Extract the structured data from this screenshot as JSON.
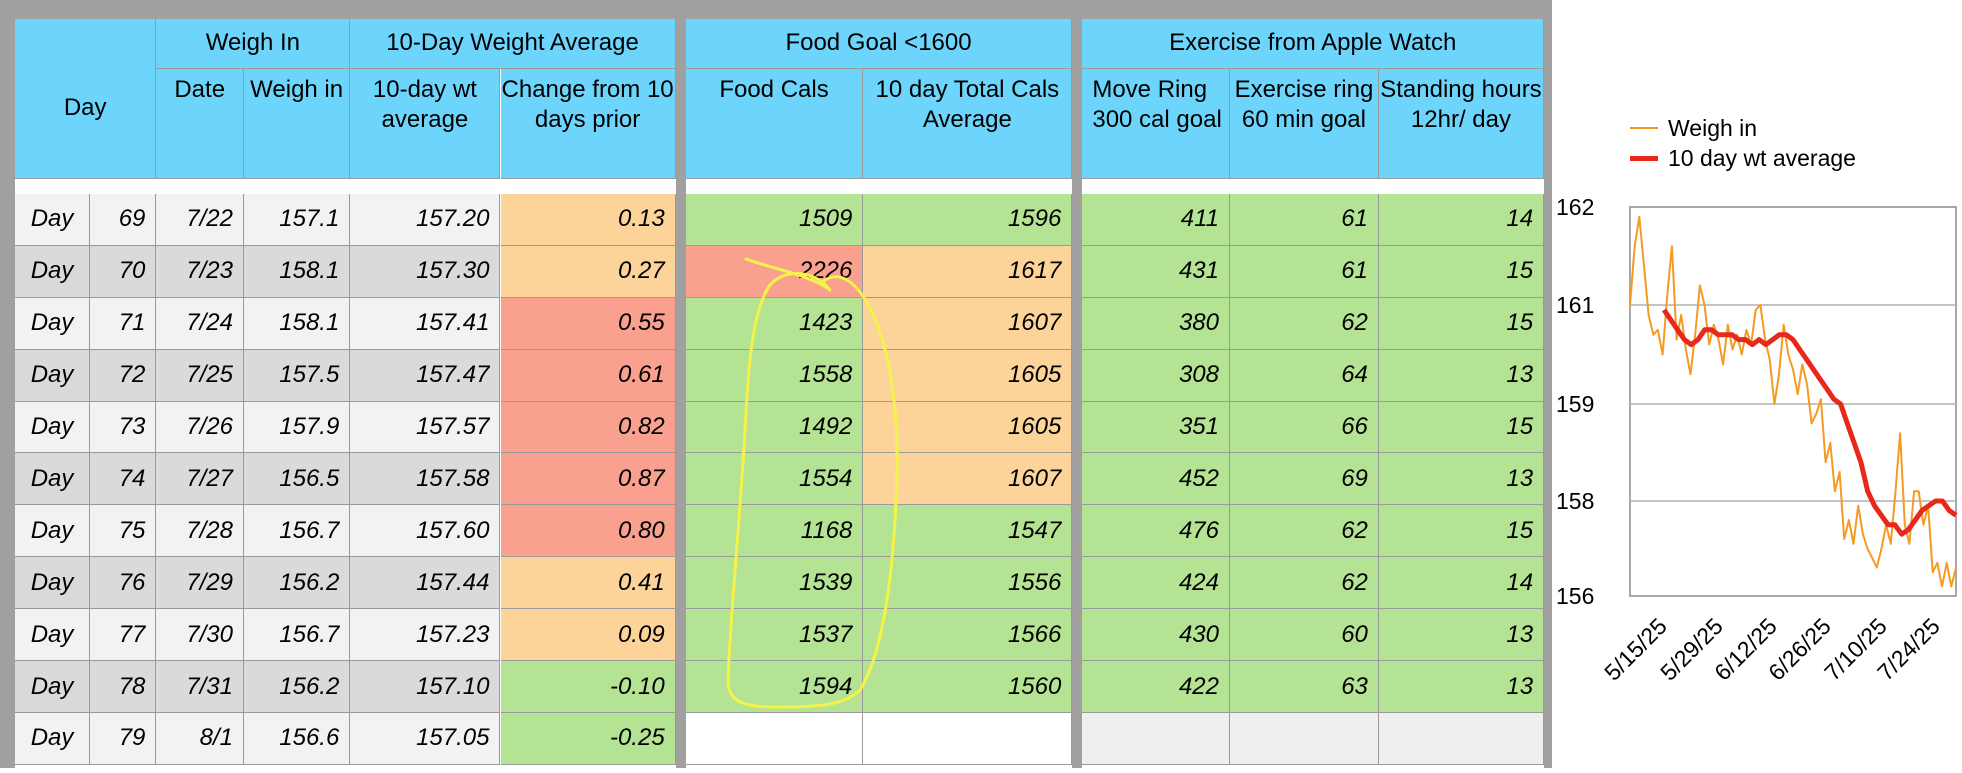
{
  "colors": {
    "header": "#6dd5fc",
    "green": "#b4e394",
    "orange": "#fcd49a",
    "red": "#f9a08e",
    "weigh_line": "#f59a23",
    "avg_line": "#e8281a",
    "annotation": "#f5f24a"
  },
  "headers": {
    "day": "Day",
    "weigh_in_group": "Weigh In",
    "avg_group": "10-Day Weight Average",
    "food_group": "Food Goal <1600",
    "exercise_group": "Exercise from Apple Watch",
    "date": "Date",
    "weigh": "Weigh in",
    "avg": "10-day wt average",
    "change": "Change from 10 days prior",
    "food": "Food Cals",
    "total": "10 day Total Cals Average",
    "move": "Move Ring 300 cal goal",
    "exercise": "Exercise ring 60 min goal",
    "stand": "Standing hours 12hr/ day"
  },
  "rows": [
    {
      "label": "Day",
      "day": "69",
      "date": "7/22",
      "weigh": "157.1",
      "avg": "157.20",
      "change": "0.13",
      "change_color": "orange",
      "food": "1509",
      "food_color": "green",
      "total": "1596",
      "total_color": "green",
      "move": "411",
      "exercise": "61",
      "stand": "14"
    },
    {
      "label": "Day",
      "day": "70",
      "date": "7/23",
      "weigh": "158.1",
      "avg": "157.30",
      "change": "0.27",
      "change_color": "orange",
      "food": "2226",
      "food_color": "red",
      "total": "1617",
      "total_color": "orange",
      "move": "431",
      "exercise": "61",
      "stand": "15"
    },
    {
      "label": "Day",
      "day": "71",
      "date": "7/24",
      "weigh": "158.1",
      "avg": "157.41",
      "change": "0.55",
      "change_color": "red",
      "food": "1423",
      "food_color": "green",
      "total": "1607",
      "total_color": "orange",
      "move": "380",
      "exercise": "62",
      "stand": "15"
    },
    {
      "label": "Day",
      "day": "72",
      "date": "7/25",
      "weigh": "157.5",
      "avg": "157.47",
      "change": "0.61",
      "change_color": "red",
      "food": "1558",
      "food_color": "green",
      "total": "1605",
      "total_color": "orange",
      "move": "308",
      "exercise": "64",
      "stand": "13"
    },
    {
      "label": "Day",
      "day": "73",
      "date": "7/26",
      "weigh": "157.9",
      "avg": "157.57",
      "change": "0.82",
      "change_color": "red",
      "food": "1492",
      "food_color": "green",
      "total": "1605",
      "total_color": "orange",
      "move": "351",
      "exercise": "66",
      "stand": "15"
    },
    {
      "label": "Day",
      "day": "74",
      "date": "7/27",
      "weigh": "156.5",
      "avg": "157.58",
      "change": "0.87",
      "change_color": "red",
      "food": "1554",
      "food_color": "green",
      "total": "1607",
      "total_color": "orange",
      "move": "452",
      "exercise": "69",
      "stand": "13"
    },
    {
      "label": "Day",
      "day": "75",
      "date": "7/28",
      "weigh": "156.7",
      "avg": "157.60",
      "change": "0.80",
      "change_color": "red",
      "food": "1168",
      "food_color": "green",
      "total": "1547",
      "total_color": "green",
      "move": "476",
      "exercise": "62",
      "stand": "15"
    },
    {
      "label": "Day",
      "day": "76",
      "date": "7/29",
      "weigh": "156.2",
      "avg": "157.44",
      "change": "0.41",
      "change_color": "orange",
      "food": "1539",
      "food_color": "green",
      "total": "1556",
      "total_color": "green",
      "move": "424",
      "exercise": "62",
      "stand": "14"
    },
    {
      "label": "Day",
      "day": "77",
      "date": "7/30",
      "weigh": "156.7",
      "avg": "157.23",
      "change": "0.09",
      "change_color": "orange",
      "food": "1537",
      "food_color": "green",
      "total": "1566",
      "total_color": "green",
      "move": "430",
      "exercise": "60",
      "stand": "13"
    },
    {
      "label": "Day",
      "day": "78",
      "date": "7/31",
      "weigh": "156.2",
      "avg": "157.10",
      "change": "-0.10",
      "change_color": "green",
      "food": "1594",
      "food_color": "green",
      "total": "1560",
      "total_color": "green",
      "move": "422",
      "exercise": "63",
      "stand": "13"
    },
    {
      "label": "Day",
      "day": "79",
      "date": "8/1",
      "weigh": "156.6",
      "avg": "157.05",
      "change": "-0.25",
      "change_color": "green",
      "food": "",
      "food_color": "empty",
      "total": "",
      "total_color": "empty",
      "move": "",
      "exercise": "",
      "stand": ""
    }
  ],
  "chart_data": {
    "type": "line",
    "legend_position": "top",
    "grid": true,
    "yticks": [
      "162",
      "161",
      "159",
      "158",
      "156"
    ],
    "xticks": [
      "5/15/25",
      "5/29/25",
      "6/12/25",
      "6/26/25",
      "7/10/25",
      "7/24/25"
    ],
    "series": [
      {
        "name": "Weigh in",
        "color": "#f59a23",
        "values": [
          161.0,
          161.6,
          161.9,
          161.4,
          160.8,
          160.4,
          160.5,
          160.0,
          161.1,
          161.6,
          160.3,
          160.8,
          160.1,
          159.6,
          160.4,
          161.2,
          161.0,
          160.2,
          160.6,
          160.3,
          159.8,
          160.6,
          160.1,
          160.4,
          160.0,
          160.5,
          160.2,
          160.9,
          161.0,
          160.3,
          159.9,
          159.0,
          159.6,
          160.6,
          160.0,
          159.7,
          159.2,
          159.8,
          159.4,
          158.8,
          158.9,
          159.1,
          158.4,
          158.6,
          158.1,
          158.3,
          157.2,
          157.6,
          157.1,
          157.9,
          157.3,
          157.0,
          156.8,
          156.6,
          157.0,
          157.5,
          157.1,
          158.1,
          158.7,
          157.5,
          157.1,
          158.1,
          158.1,
          157.5,
          157.9,
          156.5,
          156.7,
          156.2,
          156.7,
          156.2,
          156.6
        ]
      },
      {
        "name": "10 day wt average",
        "color": "#e8281a",
        "values": [
          160.9,
          160.7,
          160.5,
          160.3,
          160.2,
          160.3,
          160.5,
          160.5,
          160.4,
          160.4,
          160.4,
          160.3,
          160.3,
          160.2,
          160.3,
          160.2,
          160.3,
          160.4,
          160.4,
          160.3,
          160.1,
          159.9,
          159.7,
          159.5,
          159.3,
          159.1,
          159.0,
          158.8,
          158.6,
          158.4,
          158.1,
          157.9,
          157.7,
          157.5,
          157.5,
          157.3,
          157.4,
          157.6,
          157.8,
          157.9,
          158.0,
          158.0,
          157.8,
          157.7
        ]
      }
    ]
  }
}
